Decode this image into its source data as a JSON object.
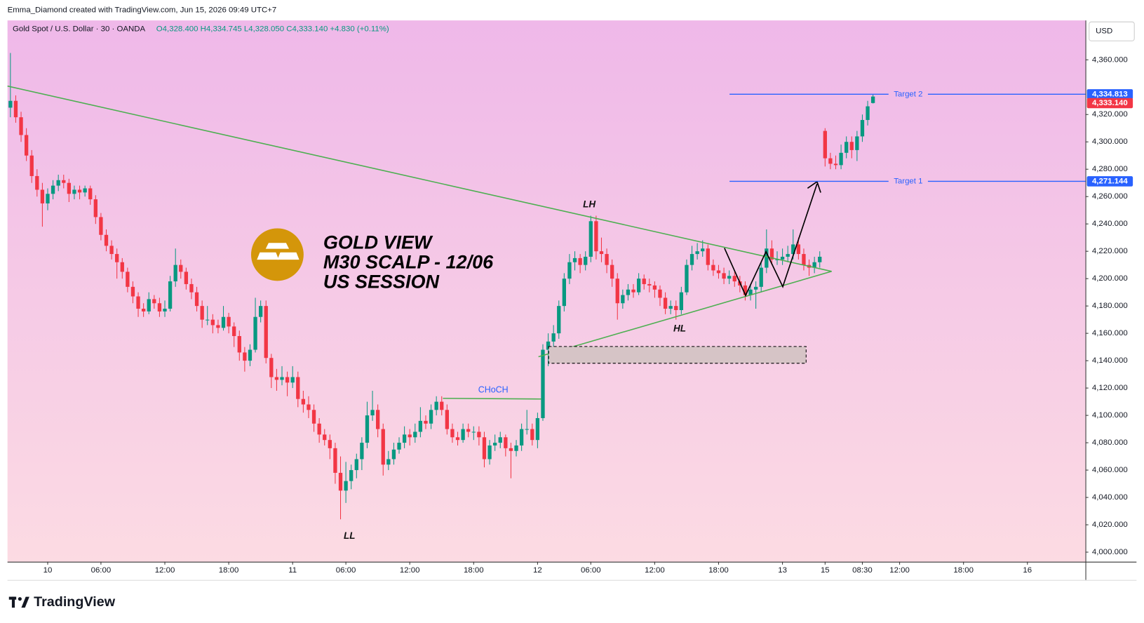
{
  "header": {
    "credit": "Emma_Diamond created with TradingView.com, Jun 15, 2026 09:49 UTC+7",
    "symbol": "Gold Spot / U.S. Dollar · 30 · OANDA",
    "ohlc": "O4,328.400  H4,334.745  L4,328.050  C4,333.140  +4.830 (+0.11%)",
    "currency": "USD"
  },
  "annotations": {
    "title": [
      "GOLD VIEW",
      "M30 SCALP - 12/06",
      "US SESSION"
    ],
    "lh": "LH",
    "hl": "HL",
    "ll": "LL",
    "choch": "CHoCH"
  },
  "footer": {
    "brand": "TradingView"
  },
  "chart_data": {
    "type": "candlestick",
    "up_color": "#089981",
    "down_color": "#f23645",
    "xlim": [
      -0.55,
      201.9
    ],
    "ylim": [
      3993,
      4388.8
    ],
    "xticks": [
      {
        "value": 7,
        "label": "10"
      },
      {
        "value": 17,
        "label": "06:00"
      },
      {
        "value": 29,
        "label": "12:00"
      },
      {
        "value": 41,
        "label": "18:00"
      },
      {
        "value": 53,
        "label": "11"
      },
      {
        "value": 63,
        "label": "06:00"
      },
      {
        "value": 75,
        "label": "12:00"
      },
      {
        "value": 87,
        "label": "18:00"
      },
      {
        "value": 99,
        "label": "12"
      },
      {
        "value": 109,
        "label": "06:00"
      },
      {
        "value": 121,
        "label": "12:00"
      },
      {
        "value": 133,
        "label": "18:00"
      },
      {
        "value": 145,
        "label": "13"
      },
      {
        "value": 153,
        "label": "15"
      },
      {
        "value": 160,
        "label": "08:30"
      },
      {
        "value": 167,
        "label": "12:00"
      },
      {
        "value": 179,
        "label": "18:00"
      },
      {
        "value": 191,
        "label": "16"
      }
    ],
    "yticks": [
      {
        "value": 4000,
        "label": "4,000.000"
      },
      {
        "value": 4020,
        "label": "4,020.000"
      },
      {
        "value": 4040,
        "label": "4,040.000"
      },
      {
        "value": 4060,
        "label": "4,060.000"
      },
      {
        "value": 4080,
        "label": "4,080.000"
      },
      {
        "value": 4100,
        "label": "4,100.000"
      },
      {
        "value": 4120,
        "label": "4,120.000"
      },
      {
        "value": 4140,
        "label": "4,140.000"
      },
      {
        "value": 4160,
        "label": "4,160.000"
      },
      {
        "value": 4180,
        "label": "4,180.000"
      },
      {
        "value": 4200,
        "label": "4,200.000"
      },
      {
        "value": 4220,
        "label": "4,220.000"
      },
      {
        "value": 4240,
        "label": "4,240.000"
      },
      {
        "value": 4260,
        "label": "4,260.000"
      },
      {
        "value": 4280,
        "label": "4,280.000"
      },
      {
        "value": 4300,
        "label": "4,300.000"
      },
      {
        "value": 4320,
        "label": "4,320.000"
      },
      {
        "value": 4360,
        "label": "4,360.000"
      }
    ],
    "levels": [
      {
        "name": "Target 2",
        "value": 4334.813,
        "label": "4,334.813",
        "color": "#2962ff"
      },
      {
        "name": "Target 1",
        "value": 4271.144,
        "label": "4,271.144",
        "color": "#2962ff"
      }
    ],
    "last_price": {
      "value": 4333.14,
      "label": "4,333.140",
      "color": "#f23645"
    },
    "candles": [
      [
        4325,
        4365,
        4318,
        4330
      ],
      [
        4330,
        4334,
        4314,
        4318
      ],
      [
        4318,
        4322,
        4300,
        4305
      ],
      [
        4305,
        4310,
        4286,
        4290
      ],
      [
        4290,
        4294,
        4270,
        4275
      ],
      [
        4275,
        4280,
        4260,
        4265
      ],
      [
        4265,
        4270,
        4238,
        4255
      ],
      [
        4255,
        4266,
        4250,
        4262
      ],
      [
        4262,
        4272,
        4258,
        4268
      ],
      [
        4268,
        4276,
        4264,
        4272
      ],
      [
        4272,
        4276,
        4266,
        4270
      ],
      [
        4270,
        4273,
        4256,
        4262
      ],
      [
        4262,
        4268,
        4258,
        4265
      ],
      [
        4265,
        4268,
        4258,
        4263
      ],
      [
        4263,
        4268,
        4260,
        4266
      ],
      [
        4266,
        4268,
        4254,
        4258
      ],
      [
        4258,
        4261,
        4240,
        4245
      ],
      [
        4245,
        4248,
        4228,
        4232
      ],
      [
        4232,
        4236,
        4220,
        4224
      ],
      [
        4224,
        4228,
        4214,
        4218
      ],
      [
        4218,
        4222,
        4200,
        4212
      ],
      [
        4212,
        4215,
        4200,
        4205
      ],
      [
        4205,
        4208,
        4190,
        4194
      ],
      [
        4194,
        4198,
        4182,
        4187
      ],
      [
        4187,
        4190,
        4172,
        4178
      ],
      [
        4178,
        4182,
        4172,
        4176
      ],
      [
        4176,
        4190,
        4174,
        4185
      ],
      [
        4185,
        4188,
        4178,
        4182
      ],
      [
        4182,
        4186,
        4172,
        4176
      ],
      [
        4176,
        4184,
        4172,
        4178
      ],
      [
        4178,
        4202,
        4176,
        4198
      ],
      [
        4198,
        4222,
        4194,
        4210
      ],
      [
        4210,
        4214,
        4200,
        4205
      ],
      [
        4205,
        4208,
        4192,
        4196
      ],
      [
        4196,
        4200,
        4185,
        4190
      ],
      [
        4190,
        4194,
        4176,
        4180
      ],
      [
        4180,
        4184,
        4164,
        4170
      ],
      [
        4170,
        4180,
        4166,
        4170
      ],
      [
        4170,
        4174,
        4160,
        4166
      ],
      [
        4166,
        4170,
        4160,
        4164
      ],
      [
        4164,
        4180,
        4162,
        4172
      ],
      [
        4172,
        4175,
        4160,
        4165
      ],
      [
        4165,
        4168,
        4150,
        4158
      ],
      [
        4158,
        4162,
        4140,
        4146
      ],
      [
        4146,
        4150,
        4132,
        4140
      ],
      [
        4140,
        4152,
        4136,
        4148
      ],
      [
        4148,
        4186,
        4146,
        4172
      ],
      [
        4172,
        4184,
        4168,
        4180
      ],
      [
        4180,
        4184,
        4138,
        4142
      ],
      [
        4142,
        4145,
        4120,
        4128
      ],
      [
        4128,
        4134,
        4118,
        4126
      ],
      [
        4126,
        4136,
        4122,
        4128
      ],
      [
        4128,
        4132,
        4114,
        4124
      ],
      [
        4124,
        4136,
        4120,
        4128
      ],
      [
        4128,
        4132,
        4106,
        4112
      ],
      [
        4112,
        4118,
        4102,
        4108
      ],
      [
        4108,
        4114,
        4098,
        4104
      ],
      [
        4104,
        4108,
        4088,
        4094
      ],
      [
        4094,
        4098,
        4080,
        4086
      ],
      [
        4086,
        4090,
        4078,
        4082
      ],
      [
        4082,
        4086,
        4068,
        4076
      ],
      [
        4076,
        4080,
        4050,
        4058
      ],
      [
        4058,
        4070,
        4024,
        4045
      ],
      [
        4045,
        4066,
        4036,
        4052
      ],
      [
        4052,
        4064,
        4046,
        4060
      ],
      [
        4060,
        4072,
        4054,
        4068
      ],
      [
        4068,
        4084,
        4060,
        4080
      ],
      [
        4080,
        4110,
        4076,
        4100
      ],
      [
        4100,
        4118,
        4096,
        4104
      ],
      [
        4104,
        4108,
        4084,
        4090
      ],
      [
        4090,
        4094,
        4056,
        4064
      ],
      [
        4064,
        4074,
        4060,
        4068
      ],
      [
        4068,
        4080,
        4064,
        4075
      ],
      [
        4075,
        4084,
        4072,
        4080
      ],
      [
        4080,
        4092,
        4076,
        4086
      ],
      [
        4086,
        4090,
        4078,
        4084
      ],
      [
        4084,
        4094,
        4080,
        4088
      ],
      [
        4088,
        4106,
        4084,
        4096
      ],
      [
        4096,
        4100,
        4090,
        4094
      ],
      [
        4094,
        4108,
        4090,
        4104
      ],
      [
        4104,
        4114,
        4100,
        4110
      ],
      [
        4110,
        4114,
        4100,
        4104
      ],
      [
        4104,
        4108,
        4086,
        4090
      ],
      [
        4090,
        4094,
        4080,
        4084
      ],
      [
        4084,
        4088,
        4078,
        4082
      ],
      [
        4082,
        4094,
        4080,
        4090
      ],
      [
        4090,
        4094,
        4084,
        4088
      ],
      [
        4088,
        4092,
        4082,
        4088
      ],
      [
        4088,
        4092,
        4078,
        4084
      ],
      [
        4084,
        4088,
        4062,
        4068
      ],
      [
        4068,
        4082,
        4064,
        4078
      ],
      [
        4078,
        4086,
        4074,
        4080
      ],
      [
        4080,
        4088,
        4076,
        4084
      ],
      [
        4084,
        4086,
        4070,
        4076
      ],
      [
        4076,
        4080,
        4054,
        4074
      ],
      [
        4074,
        4082,
        4070,
        4078
      ],
      [
        4078,
        4094,
        4074,
        4090
      ],
      [
        4090,
        4104,
        4086,
        4090
      ],
      [
        4090,
        4094,
        4078,
        4082
      ],
      [
        4082,
        4102,
        4076,
        4098
      ],
      [
        4098,
        4152,
        4096,
        4148
      ],
      [
        4148,
        4160,
        4136,
        4154
      ],
      [
        4154,
        4166,
        4150,
        4160
      ],
      [
        4160,
        4184,
        4156,
        4180
      ],
      [
        4180,
        4204,
        4176,
        4200
      ],
      [
        4200,
        4218,
        4196,
        4212
      ],
      [
        4212,
        4220,
        4206,
        4215
      ],
      [
        4215,
        4218,
        4204,
        4210
      ],
      [
        4210,
        4220,
        4206,
        4216
      ],
      [
        4216,
        4246,
        4212,
        4242
      ],
      [
        4242,
        4246,
        4214,
        4220
      ],
      [
        4220,
        4230,
        4212,
        4218
      ],
      [
        4218,
        4222,
        4204,
        4210
      ],
      [
        4210,
        4214,
        4194,
        4200
      ],
      [
        4200,
        4204,
        4170,
        4182
      ],
      [
        4182,
        4192,
        4178,
        4188
      ],
      [
        4188,
        4196,
        4184,
        4192
      ],
      [
        4192,
        4196,
        4186,
        4190
      ],
      [
        4190,
        4204,
        4188,
        4200
      ],
      [
        4200,
        4203,
        4192,
        4196
      ],
      [
        4196,
        4200,
        4190,
        4195
      ],
      [
        4195,
        4198,
        4186,
        4192
      ],
      [
        4192,
        4195,
        4180,
        4186
      ],
      [
        4186,
        4190,
        4174,
        4178
      ],
      [
        4178,
        4184,
        4174,
        4180
      ],
      [
        4180,
        4184,
        4170,
        4177
      ],
      [
        4177,
        4194,
        4174,
        4190
      ],
      [
        4190,
        4214,
        4188,
        4210
      ],
      [
        4210,
        4224,
        4206,
        4218
      ],
      [
        4218,
        4226,
        4214,
        4220
      ],
      [
        4220,
        4228,
        4216,
        4222
      ],
      [
        4222,
        4225,
        4206,
        4210
      ],
      [
        4210,
        4214,
        4202,
        4206
      ],
      [
        4206,
        4210,
        4200,
        4204
      ],
      [
        4204,
        4208,
        4196,
        4200
      ],
      [
        4200,
        4206,
        4196,
        4202
      ],
      [
        4202,
        4205,
        4194,
        4198
      ],
      [
        4198,
        4202,
        4190,
        4195
      ],
      [
        4195,
        4198,
        4184,
        4188
      ],
      [
        4188,
        4196,
        4184,
        4192
      ],
      [
        4192,
        4198,
        4178,
        4194
      ],
      [
        4194,
        4212,
        4190,
        4208
      ],
      [
        4208,
        4236,
        4204,
        4222
      ],
      [
        4222,
        4228,
        4210,
        4214
      ],
      [
        4214,
        4220,
        4210,
        4214
      ],
      [
        4214,
        4222,
        4210,
        4216
      ],
      [
        4216,
        4224,
        4212,
        4218
      ],
      [
        4218,
        4236,
        4214,
        4225
      ],
      [
        4225,
        4230,
        4214,
        4218
      ],
      [
        4218,
        4222,
        4206,
        4210
      ],
      [
        4210,
        4214,
        4202,
        4208
      ],
      [
        4208,
        4216,
        4204,
        4212
      ],
      [
        4212,
        4220,
        4208,
        4216
      ],
      [
        4308,
        4310,
        4282,
        4288
      ],
      [
        4288,
        4292,
        4280,
        4284
      ],
      [
        4284,
        4290,
        4280,
        4283
      ],
      [
        4283,
        4298,
        4280,
        4292
      ],
      [
        4292,
        4304,
        4288,
        4300
      ],
      [
        4300,
        4304,
        4288,
        4294
      ],
      [
        4294,
        4308,
        4286,
        4304
      ],
      [
        4304,
        4320,
        4300,
        4316
      ],
      [
        4316,
        4330,
        4312,
        4326
      ],
      [
        4328.4,
        4334.745,
        4328.05,
        4333.14
      ]
    ]
  }
}
